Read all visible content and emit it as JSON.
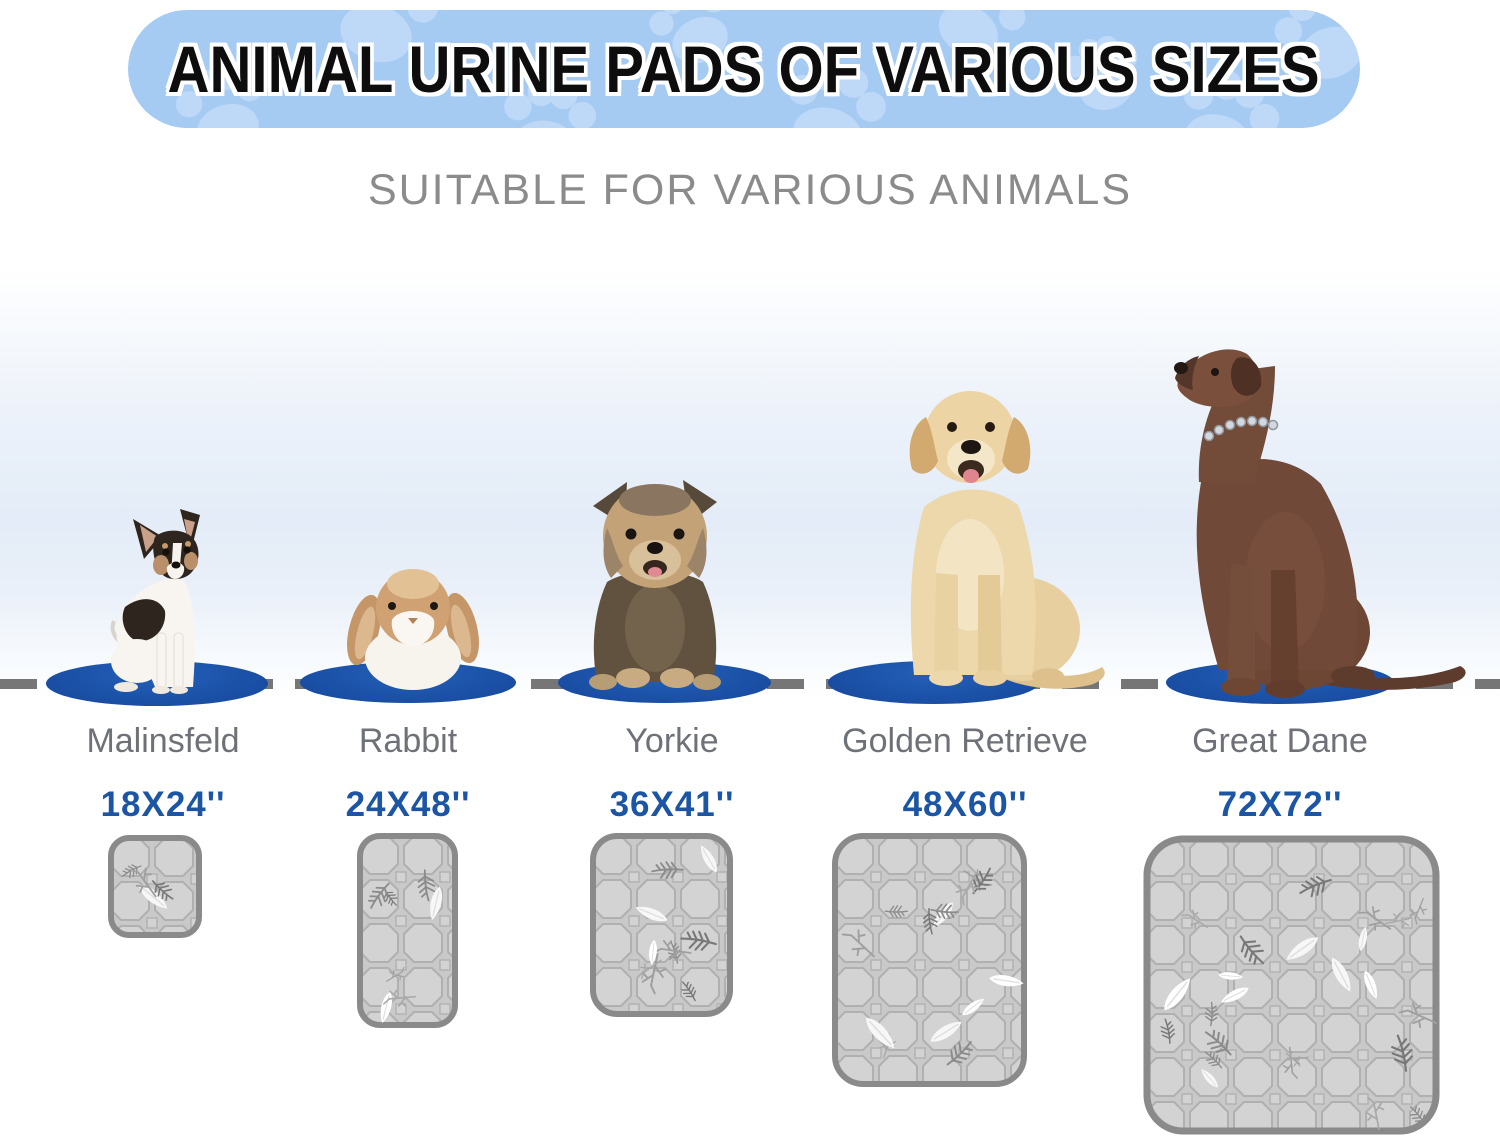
{
  "header": {
    "title": "ANIMAL URINE PADS OF VARIOUS SIZES",
    "subtitle": "SUITABLE FOR VARIOUS ANIMALS"
  },
  "animals": [
    {
      "name": "Malinsfeld",
      "pad_size": "18X24''"
    },
    {
      "name": "Rabbit",
      "pad_size": "24X48''"
    },
    {
      "name": "Yorkie",
      "pad_size": "36X41''"
    },
    {
      "name": "Golden Retrieve",
      "pad_size": "48X60''"
    },
    {
      "name": "Great Dane",
      "pad_size": "72X72''"
    }
  ],
  "icons": {
    "banner_decoration": "paw-icon",
    "pad_decoration": "leaf-icon"
  },
  "colors": {
    "banner_bg": "#a6cbf3",
    "paw_print": "#bed8f8",
    "title_text": "#0d0d0d",
    "subtitle_text": "#8b8b8b",
    "oval_blue": "#1b52a8",
    "dash_gray": "#767676",
    "name_text": "#6e7177",
    "size_text": "#1d55a5",
    "pad_fill": "#cdcdcd",
    "pad_border": "#8a8a8a"
  }
}
